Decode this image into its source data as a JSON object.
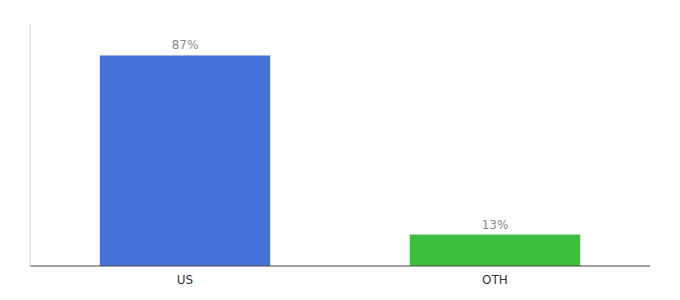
{
  "chart_data": {
    "type": "bar",
    "categories": [
      "US",
      "OTH"
    ],
    "values": [
      87,
      13
    ],
    "value_labels": [
      "87%",
      "13%"
    ],
    "colors": [
      "#4472d9",
      "#3dbf3d"
    ],
    "ylim": [
      0,
      100
    ],
    "data_labels": true,
    "tick_labels": "x",
    "grid": false
  }
}
